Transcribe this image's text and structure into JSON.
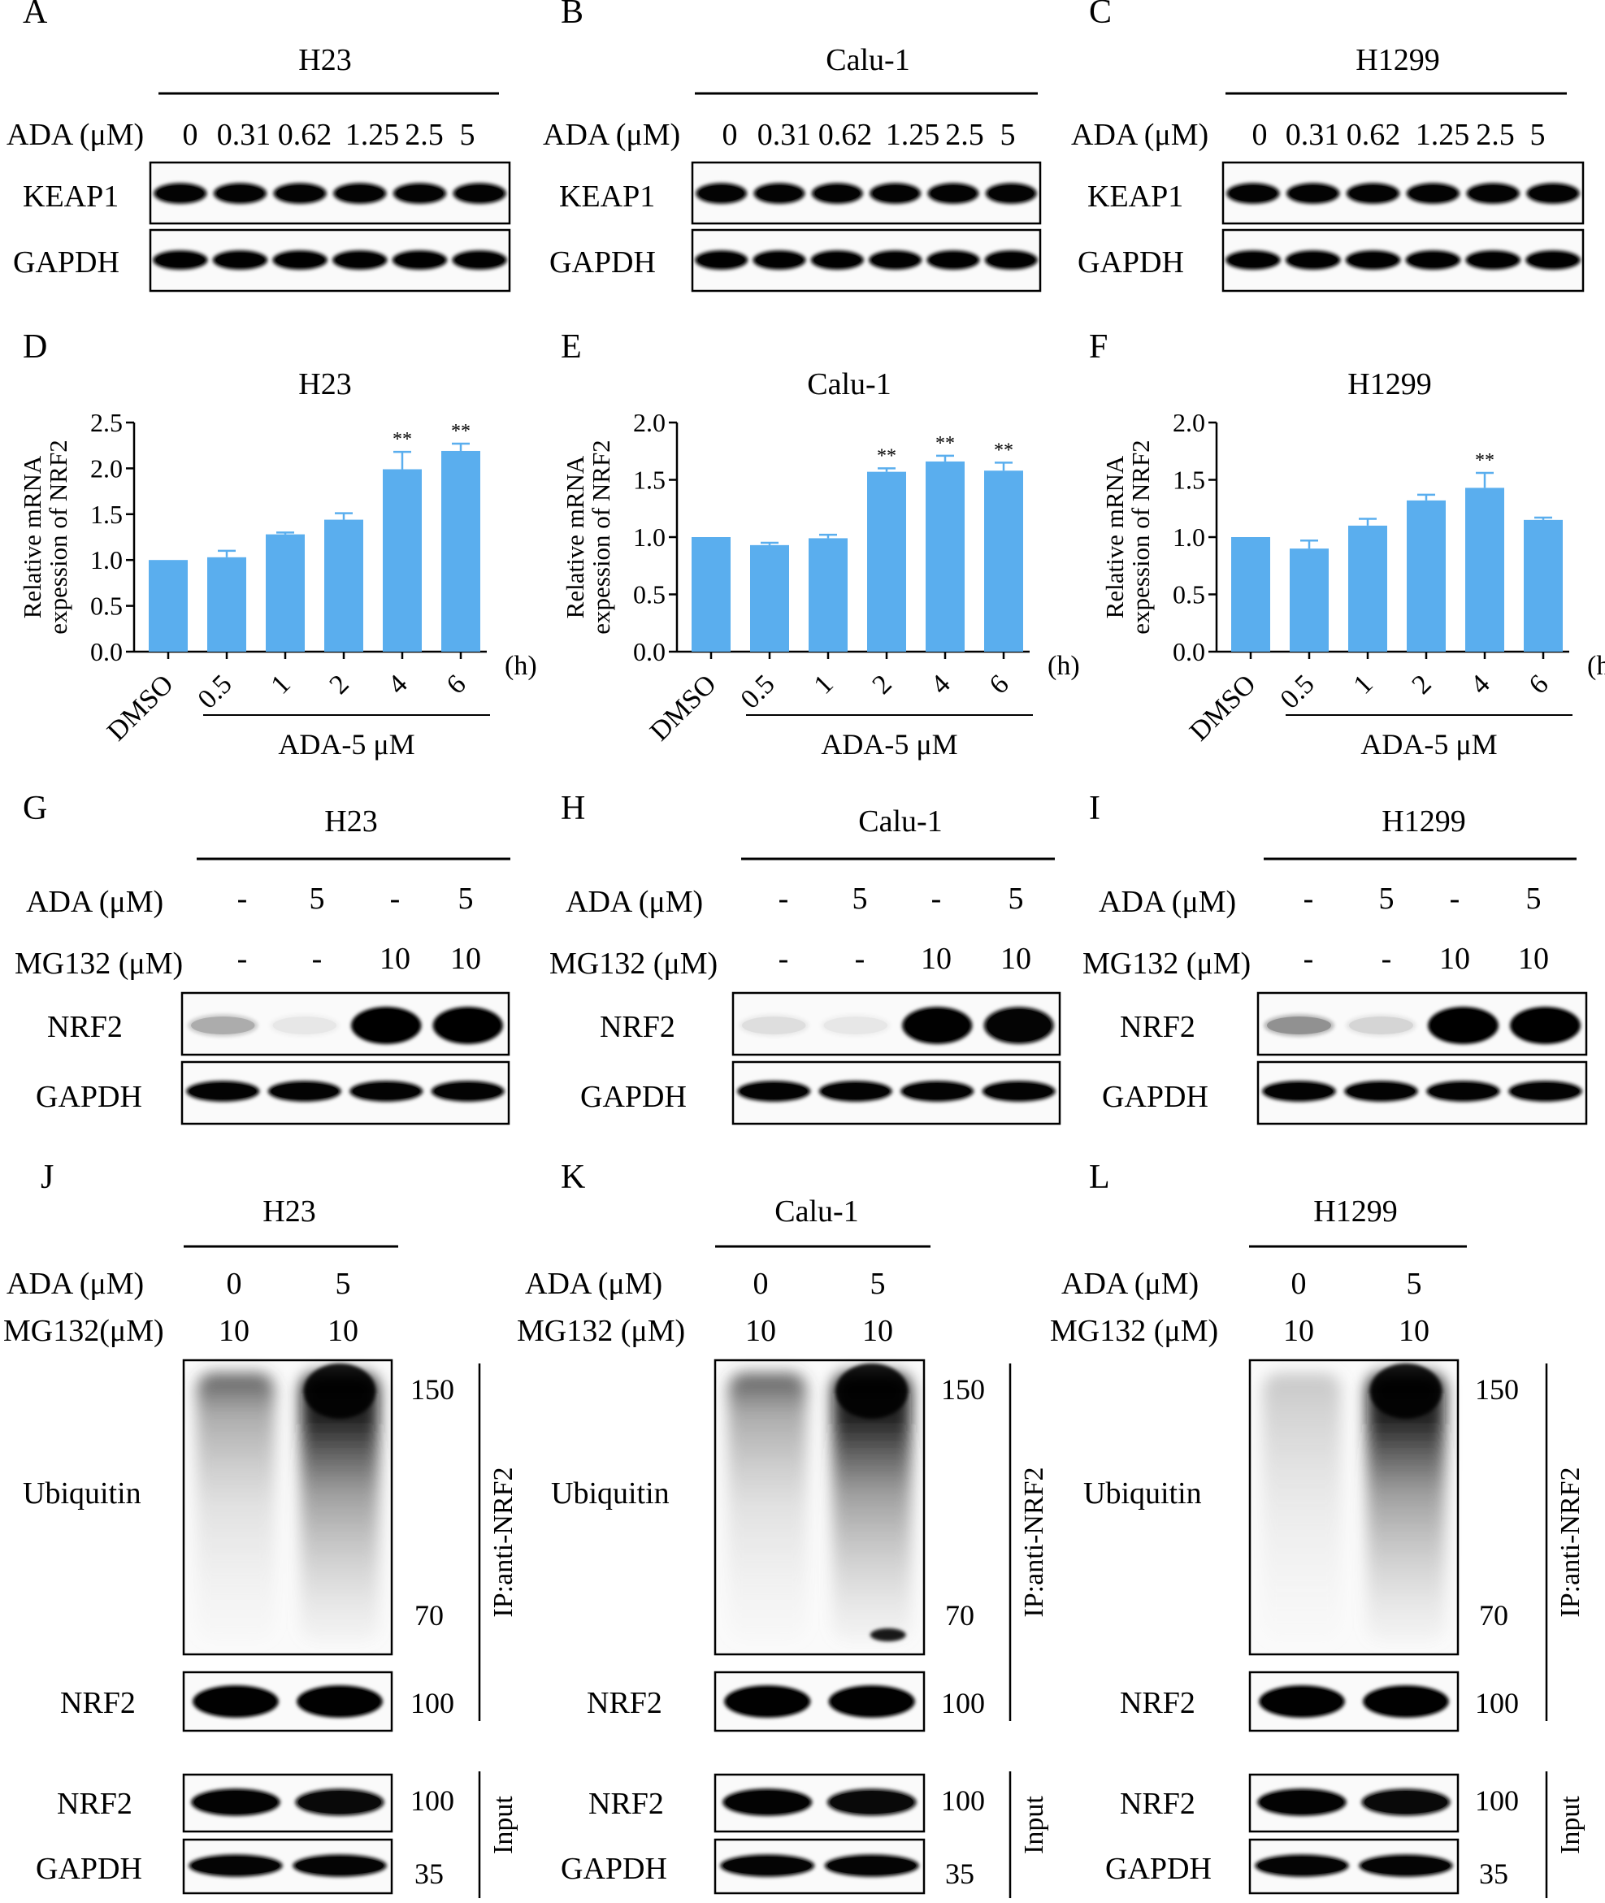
{
  "panel_letters": [
    "A",
    "B",
    "C",
    "D",
    "E",
    "F",
    "G",
    "H",
    "I",
    "J",
    "K",
    "L"
  ],
  "cell_lines": [
    "H23",
    "Calu-1",
    "H1299"
  ],
  "row1": {
    "ada_label": "ADA (μM)",
    "concentrations": [
      "0",
      "0.31",
      "0.62",
      "1.25",
      "2.5",
      "5"
    ],
    "blots": [
      "KEAP1",
      "GAPDH"
    ]
  },
  "row2": {
    "unit": "(h)",
    "x_group_label": "ADA-5 μM"
  },
  "chart_data": [
    {
      "type": "bar",
      "panel": "D",
      "title": "H23",
      "ylabel": "Relative mRNA expession of NRF2",
      "xlabel": "(h)",
      "categories": [
        "DMSO",
        "0.5",
        "1",
        "2",
        "4",
        "6"
      ],
      "values": [
        1.0,
        1.03,
        1.28,
        1.44,
        1.99,
        2.19
      ],
      "errors": [
        0.0,
        0.07,
        0.02,
        0.07,
        0.19,
        0.08
      ],
      "significance": [
        "",
        "",
        "",
        "",
        "**",
        "**"
      ],
      "ylim": [
        0,
        2.5
      ],
      "yticks": [
        "0.0",
        "0.5",
        "1.0",
        "1.5",
        "2.0",
        "2.5"
      ],
      "group_label": "ADA-5 μM",
      "bar_color": "#5aaeee"
    },
    {
      "type": "bar",
      "panel": "E",
      "title": "Calu-1",
      "ylabel": "Relative mRNA expession of NRF2",
      "xlabel": "(h)",
      "categories": [
        "DMSO",
        "0.5",
        "1",
        "2",
        "4",
        "6"
      ],
      "values": [
        1.0,
        0.93,
        0.99,
        1.57,
        1.66,
        1.58
      ],
      "errors": [
        0.0,
        0.02,
        0.03,
        0.03,
        0.05,
        0.07
      ],
      "significance": [
        "",
        "",
        "",
        "**",
        "**",
        "**"
      ],
      "ylim": [
        0,
        2.0
      ],
      "yticks": [
        "0.0",
        "0.5",
        "1.0",
        "1.5",
        "2.0"
      ],
      "group_label": "ADA-5 μM",
      "bar_color": "#5aaeee"
    },
    {
      "type": "bar",
      "panel": "F",
      "title": "H1299",
      "ylabel": "Relative mRNA expession of NRF2",
      "xlabel": "(h)",
      "categories": [
        "DMSO",
        "0.5",
        "1",
        "2",
        "4",
        "6"
      ],
      "values": [
        1.0,
        0.9,
        1.1,
        1.32,
        1.43,
        1.15
      ],
      "errors": [
        0.0,
        0.07,
        0.06,
        0.05,
        0.13,
        0.02
      ],
      "significance": [
        "",
        "",
        "",
        "",
        "**",
        ""
      ],
      "ylim": [
        0,
        2.0
      ],
      "yticks": [
        "0.0",
        "0.5",
        "1.0",
        "1.5",
        "2.0"
      ],
      "group_label": "ADA-5 μM",
      "bar_color": "#5aaeee"
    }
  ],
  "row3": {
    "ada_label": "ADA (μM)",
    "mg_label": "MG132 (μM)",
    "ada_values": [
      "-",
      "5",
      "-",
      "5"
    ],
    "mg_values": [
      "-",
      "-",
      "10",
      "10"
    ],
    "blots": [
      "NRF2",
      "GAPDH"
    ],
    "band_intensity_nrf2": [
      [
        0.18,
        0.03,
        1.0,
        0.98
      ],
      [
        0.06,
        0.03,
        0.96,
        0.9
      ],
      [
        0.25,
        0.08,
        1.0,
        1.0
      ]
    ]
  },
  "row4": {
    "ada_label": "ADA (μM)",
    "mg_labels": [
      "MG132(μM)",
      "MG132 (μM)",
      "MG132 (μM)"
    ],
    "ada_values": [
      "0",
      "5"
    ],
    "mg_values": [
      "10",
      "10"
    ],
    "ubiquitin_label": "Ubiquitin",
    "ip_label": "IP:anti-NRF2",
    "input_label": "Input",
    "nrf2_label": "NRF2",
    "gapdh_label": "GAPDH",
    "mw_ubiquitin": [
      "150",
      "70"
    ],
    "mw_nrf2": "100",
    "mw_gapdh": "35"
  }
}
